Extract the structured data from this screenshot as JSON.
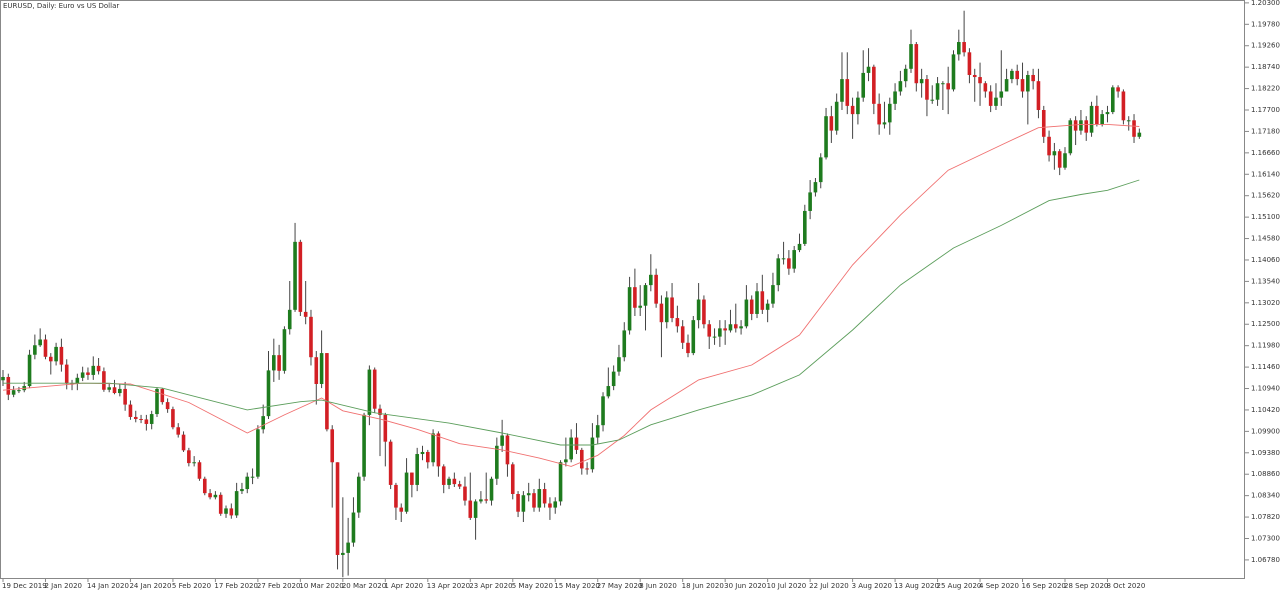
{
  "chart_data": {
    "type": "candlestick",
    "title": "EURUSD, Daily:  Euro vs US Dollar",
    "up_color": "#1e7b1e",
    "down_color": "#d21f24",
    "categories": [
      "19 Dec 2019",
      null,
      null,
      null,
      null,
      null,
      null,
      null,
      "2 Jan 2020",
      null,
      null,
      null,
      null,
      null,
      null,
      null,
      "14 Jan 2020",
      null,
      null,
      null,
      null,
      null,
      null,
      null,
      "24 Jan 2020",
      null,
      null,
      null,
      null,
      null,
      null,
      null,
      "5 Feb 2020",
      null,
      null,
      null,
      null,
      null,
      null,
      null,
      "17 Feb 2020",
      null,
      null,
      null,
      null,
      null,
      null,
      null,
      "27 Feb 2020",
      null,
      null,
      null,
      null,
      null,
      null,
      null,
      "10 Mar 2020",
      null,
      null,
      null,
      null,
      null,
      null,
      null,
      "20 Mar 2020",
      null,
      null,
      null,
      null,
      null,
      null,
      null,
      "1 Apr 2020",
      null,
      null,
      null,
      null,
      null,
      null,
      null,
      "13 Apr 2020",
      null,
      null,
      null,
      null,
      null,
      null,
      null,
      "23 Apr 2020",
      null,
      null,
      null,
      null,
      null,
      null,
      null,
      "5 May 2020",
      null,
      null,
      null,
      null,
      null,
      null,
      null,
      "15 May 2020",
      null,
      null,
      null,
      null,
      null,
      null,
      null,
      "27 May 2020",
      null,
      null,
      null,
      null,
      null,
      null,
      null,
      "8 Jun 2020",
      null,
      null,
      null,
      null,
      null,
      null,
      null,
      "18 Jun 2020",
      null,
      null,
      null,
      null,
      null,
      null,
      null,
      "30 Jun 2020",
      null,
      null,
      null,
      null,
      null,
      null,
      null,
      "10 Jul 2020",
      null,
      null,
      null,
      null,
      null,
      null,
      null,
      "22 Jul 2020",
      null,
      null,
      null,
      null,
      null,
      null,
      null,
      "3 Aug 2020",
      null,
      null,
      null,
      null,
      null,
      null,
      null,
      "13 Aug 2020",
      null,
      null,
      null,
      null,
      null,
      null,
      null,
      "25 Aug 2020",
      null,
      null,
      null,
      null,
      null,
      null,
      null,
      "4 Sep 2020",
      null,
      null,
      null,
      null,
      null,
      null,
      null,
      "16 Sep 2020",
      null,
      null,
      null,
      null,
      null,
      null,
      null,
      "28 Sep 2020",
      null,
      null,
      null,
      null,
      null,
      null,
      null,
      "8 Oct 2020",
      null,
      null,
      null,
      null,
      null,
      null
    ],
    "open": [
      1.1114,
      1.1122,
      1.1079,
      1.109,
      1.109,
      1.11,
      1.1176,
      1.1199,
      1.1213,
      1.1171,
      1.116,
      1.1195,
      1.1152,
      1.1106,
      1.1105,
      1.112,
      1.1133,
      1.1127,
      1.1149,
      1.1136,
      1.1091,
      1.1097,
      1.1083,
      1.1093,
      1.1055,
      1.1025,
      1.102,
      1.1019,
      1.1008,
      1.1032,
      1.1093,
      1.1061,
      1.1044,
      1.1,
      1.0982,
      1.0944,
      1.0913,
      1.0915,
      1.0875,
      1.084,
      1.083,
      1.0836,
      1.079,
      1.0803,
      1.0786,
      1.0845,
      1.085,
      1.088,
      1.088,
      1.0995,
      1.1027,
      1.1138,
      1.1175,
      1.1137,
      1.1238,
      1.1285,
      1.145,
      1.128,
      1.1268,
      1.117,
      1.1105,
      1.118,
      1.0995,
      1.0915,
      1.069,
      1.0695,
      1.072,
      1.0793,
      1.088,
      1.103,
      1.114,
      1.1045,
      1.103,
      1.0965,
      1.086,
      1.0805,
      1.0795,
      1.089,
      1.086,
      1.0935,
      1.094,
      1.0915,
      1.0985,
      1.0905,
      1.086,
      1.0875,
      1.0862,
      1.0856,
      1.0822,
      1.078,
      1.082,
      1.0825,
      1.0822,
      1.0875,
      1.0955,
      1.098,
      1.091,
      1.0838,
      1.0795,
      1.0835,
      1.084,
      1.0805,
      1.085,
      1.0815,
      1.0805,
      1.082,
      1.0915,
      1.0922,
      1.0975,
      1.0945,
      1.09,
      1.0898,
      1.0975,
      1.1005,
      1.1075,
      1.11,
      1.1135,
      1.117,
      1.1235,
      1.134,
      1.129,
      1.1295,
      1.1345,
      1.137,
      1.13,
      1.1255,
      1.1315,
      1.1265,
      1.1245,
      1.1205,
      1.118,
      1.126,
      1.131,
      1.125,
      1.122,
      1.122,
      1.124,
      1.1235,
      1.125,
      1.124,
      1.1245,
      1.131,
      1.1275,
      1.133,
      1.1285,
      1.13,
      1.1345,
      1.141,
      1.141,
      1.1385,
      1.143,
      1.1445,
      1.1525,
      1.157,
      1.1595,
      1.1655,
      1.1755,
      1.172,
      1.179,
      1.1845,
      1.178,
      1.176,
      1.18,
      1.186,
      1.1875,
      1.1785,
      1.1735,
      1.174,
      1.1785,
      1.1815,
      1.184,
      1.187,
      1.193,
      1.1835,
      1.1845,
      1.1795,
      1.1795,
      1.1835,
      1.1835,
      1.182,
      1.1905,
      1.1935,
      1.191,
      1.1855,
      1.185,
      1.1835,
      1.1815,
      1.178,
      1.18,
      1.1815,
      1.1845,
      1.1865,
      1.1845,
      1.1815,
      1.1855,
      1.184,
      1.177,
      1.1705,
      1.166,
      1.167,
      1.163,
      1.1665,
      1.1745,
      1.172,
      1.1745,
      1.1715,
      1.178,
      1.1735,
      1.176,
      1.1765,
      1.1825,
      1.1815,
      1.1745,
      1.1745,
      1.1705
    ],
    "high": [
      1.1139,
      1.113,
      1.11,
      1.1098,
      1.111,
      1.1188,
      1.1225,
      1.124,
      1.1225,
      1.118,
      1.1205,
      1.1215,
      1.1165,
      1.1115,
      1.113,
      1.1147,
      1.1145,
      1.1172,
      1.1168,
      1.1145,
      1.1105,
      1.1115,
      1.1105,
      1.111,
      1.1065,
      1.104,
      1.103,
      1.103,
      1.104,
      1.1097,
      1.1095,
      1.107,
      1.105,
      1.101,
      1.099,
      1.095,
      1.093,
      1.092,
      1.088,
      1.085,
      1.0845,
      1.0842,
      1.081,
      1.0815,
      1.0865,
      1.0865,
      1.089,
      1.09,
      1.1005,
      1.1055,
      1.1185,
      1.1215,
      1.12,
      1.1245,
      1.1355,
      1.1496,
      1.1455,
      1.1355,
      1.1285,
      1.1185,
      1.1235,
      1.118,
      1.1005,
      1.0915,
      1.083,
      1.078,
      1.083,
      1.089,
      1.1035,
      1.115,
      1.1145,
      1.1055,
      1.1035,
      1.097,
      1.0865,
      1.0815,
      1.0925,
      1.089,
      1.095,
      1.0955,
      1.0945,
      1.0995,
      1.099,
      1.091,
      1.088,
      1.089,
      1.087,
      1.088,
      1.089,
      1.0825,
      1.0845,
      1.089,
      1.088,
      1.0975,
      1.1018,
      1.0985,
      1.0915,
      1.0845,
      1.0845,
      1.0865,
      1.085,
      1.0875,
      1.0865,
      1.083,
      1.083,
      1.092,
      1.0975,
      1.0995,
      1.101,
      1.095,
      1.0915,
      1.101,
      1.103,
      1.1085,
      1.1145,
      1.115,
      1.12,
      1.1255,
      1.1365,
      1.1385,
      1.1345,
      1.135,
      1.142,
      1.1385,
      1.132,
      1.133,
      1.135,
      1.1295,
      1.126,
      1.1225,
      1.127,
      1.135,
      1.132,
      1.126,
      1.124,
      1.126,
      1.126,
      1.1285,
      1.13,
      1.126,
      1.1345,
      1.132,
      1.135,
      1.137,
      1.131,
      1.1375,
      1.142,
      1.145,
      1.143,
      1.144,
      1.147,
      1.154,
      1.16,
      1.1605,
      1.1665,
      1.1775,
      1.178,
      1.181,
      1.191,
      1.191,
      1.18,
      1.1815,
      1.1915,
      1.192,
      1.188,
      1.181,
      1.179,
      1.18,
      1.1835,
      1.1865,
      1.188,
      1.1965,
      1.1935,
      1.187,
      1.1855,
      1.183,
      1.185,
      1.184,
      1.1875,
      1.1915,
      1.1965,
      1.2011,
      1.192,
      1.187,
      1.1885,
      1.184,
      1.183,
      1.1835,
      1.1915,
      1.187,
      1.187,
      1.188,
      1.1885,
      1.1865,
      1.187,
      1.187,
      1.178,
      1.172,
      1.169,
      1.1675,
      1.168,
      1.175,
      1.1755,
      1.177,
      1.1755,
      1.179,
      1.1805,
      1.177,
      1.178,
      1.183,
      1.183,
      1.182,
      1.1755,
      1.176,
      1.1725
    ],
    "low": [
      1.11,
      1.1066,
      1.1073,
      1.1083,
      1.1085,
      1.1095,
      1.1165,
      1.1195,
      1.1165,
      1.1128,
      1.115,
      1.1135,
      1.1092,
      1.109,
      1.109,
      1.1112,
      1.1115,
      1.1115,
      1.1128,
      1.1086,
      1.1085,
      1.108,
      1.1075,
      1.104,
      1.1018,
      1.1012,
      1.101,
      1.0992,
      1.0995,
      1.1025,
      1.1055,
      1.1035,
      1.0995,
      1.0975,
      1.094,
      1.0905,
      1.0905,
      1.087,
      1.0835,
      1.0825,
      1.0825,
      1.0785,
      1.078,
      1.0778,
      1.078,
      1.0838,
      1.084,
      1.0862,
      1.0875,
      1.0985,
      1.102,
      1.111,
      1.1115,
      1.113,
      1.1225,
      1.128,
      1.127,
      1.125,
      1.115,
      1.1055,
      1.1095,
      1.099,
      1.0805,
      1.0655,
      1.0636,
      1.064,
      1.071,
      1.078,
      1.087,
      1.1005,
      1.1035,
      1.093,
      1.0905,
      1.085,
      1.0775,
      1.077,
      1.079,
      1.083,
      1.0845,
      1.092,
      1.09,
      1.0905,
      1.088,
      1.084,
      1.085,
      1.0855,
      1.085,
      1.081,
      1.0775,
      1.0727,
      1.0815,
      1.0815,
      1.081,
      1.086,
      1.094,
      1.088,
      1.0825,
      1.0782,
      1.077,
      1.082,
      1.0795,
      1.0795,
      1.0805,
      1.0775,
      1.079,
      1.081,
      1.0905,
      1.0915,
      1.0935,
      1.0885,
      1.0885,
      1.089,
      1.096,
      1.099,
      1.107,
      1.109,
      1.1125,
      1.116,
      1.1225,
      1.127,
      1.127,
      1.1235,
      1.133,
      1.129,
      1.117,
      1.124,
      1.1255,
      1.123,
      1.119,
      1.117,
      1.1175,
      1.124,
      1.124,
      1.119,
      1.12,
      1.1195,
      1.12,
      1.123,
      1.123,
      1.1225,
      1.124,
      1.126,
      1.1265,
      1.1275,
      1.1255,
      1.129,
      1.133,
      1.1395,
      1.137,
      1.1375,
      1.1425,
      1.144,
      1.1505,
      1.156,
      1.158,
      1.165,
      1.169,
      1.171,
      1.177,
      1.176,
      1.17,
      1.1735,
      1.179,
      1.184,
      1.176,
      1.171,
      1.1725,
      1.171,
      1.177,
      1.1805,
      1.1825,
      1.186,
      1.1815,
      1.18,
      1.1755,
      1.1785,
      1.178,
      1.177,
      1.176,
      1.1815,
      1.189,
      1.19,
      1.1835,
      1.179,
      1.178,
      1.18,
      1.1765,
      1.177,
      1.178,
      1.1815,
      1.1835,
      1.183,
      1.18,
      1.1735,
      1.182,
      1.175,
      1.169,
      1.1645,
      1.1625,
      1.1612,
      1.1625,
      1.166,
      1.1685,
      1.171,
      1.1695,
      1.1705,
      1.173,
      1.173,
      1.174,
      1.176,
      1.18,
      1.1735,
      1.172,
      1.169,
      1.17
    ],
    "close": [
      1.1122,
      1.1079,
      1.109,
      1.109,
      1.11,
      1.1176,
      1.1199,
      1.1213,
      1.1171,
      1.116,
      1.1195,
      1.1152,
      1.1106,
      1.1105,
      1.112,
      1.1133,
      1.1127,
      1.1149,
      1.1136,
      1.1091,
      1.1097,
      1.1083,
      1.1093,
      1.1055,
      1.1025,
      1.102,
      1.1019,
      1.1008,
      1.1032,
      1.1093,
      1.1061,
      1.1044,
      1.1,
      1.0982,
      1.0944,
      1.0913,
      1.0915,
      1.0875,
      1.084,
      1.083,
      1.0836,
      1.079,
      1.0803,
      1.0786,
      1.0845,
      1.085,
      1.088,
      1.088,
      1.0995,
      1.1027,
      1.1138,
      1.1175,
      1.1137,
      1.1238,
      1.1285,
      1.145,
      1.128,
      1.1268,
      1.117,
      1.1105,
      1.118,
      1.0995,
      1.0915,
      1.069,
      1.0695,
      1.072,
      1.0793,
      1.088,
      1.103,
      1.114,
      1.1045,
      1.103,
      1.0965,
      1.086,
      1.0805,
      1.0795,
      1.089,
      1.086,
      1.0935,
      1.094,
      1.0915,
      1.0985,
      1.0905,
      1.086,
      1.0875,
      1.0862,
      1.0856,
      1.0822,
      1.078,
      1.082,
      1.0825,
      1.0822,
      1.0875,
      1.0955,
      1.098,
      1.091,
      1.0838,
      1.0795,
      1.0835,
      1.084,
      1.0805,
      1.085,
      1.0815,
      1.0805,
      1.082,
      1.0915,
      1.0922,
      1.0975,
      1.0945,
      1.09,
      1.0898,
      1.0975,
      1.1005,
      1.1075,
      1.11,
      1.1135,
      1.117,
      1.1235,
      1.134,
      1.129,
      1.1295,
      1.1345,
      1.137,
      1.13,
      1.1255,
      1.1315,
      1.1265,
      1.1245,
      1.1205,
      1.118,
      1.126,
      1.131,
      1.125,
      1.122,
      1.122,
      1.124,
      1.1235,
      1.125,
      1.124,
      1.1245,
      1.131,
      1.1275,
      1.133,
      1.1285,
      1.13,
      1.1345,
      1.141,
      1.141,
      1.1385,
      1.143,
      1.1445,
      1.1525,
      1.157,
      1.1595,
      1.1655,
      1.1755,
      1.172,
      1.179,
      1.1845,
      1.178,
      1.176,
      1.18,
      1.186,
      1.1875,
      1.1785,
      1.1735,
      1.174,
      1.1785,
      1.1815,
      1.184,
      1.187,
      1.193,
      1.1835,
      1.1845,
      1.1795,
      1.1795,
      1.1835,
      1.1835,
      1.182,
      1.1905,
      1.1935,
      1.191,
      1.1855,
      1.185,
      1.1835,
      1.1815,
      1.178,
      1.18,
      1.1815,
      1.1845,
      1.1865,
      1.1845,
      1.1815,
      1.1855,
      1.184,
      1.177,
      1.1705,
      1.166,
      1.167,
      1.163,
      1.1665,
      1.1745,
      1.172,
      1.1745,
      1.1715,
      1.178,
      1.1735,
      1.176,
      1.1765,
      1.1825,
      1.1815,
      1.1745,
      1.1745,
      1.1705,
      1.1715
    ],
    "overlays": [
      {
        "color": "#f07070",
        "x": [
          0,
          15,
          24,
          35,
          46,
          53,
          60,
          64,
          71,
          78,
          86,
          94,
          101,
          107,
          112,
          117,
          122,
          131,
          141,
          150,
          160,
          169,
          178,
          188,
          195,
          203,
          208,
          214
        ],
        "values": [
          1.109,
          1.1107,
          1.1105,
          1.106,
          1.0986,
          1.103,
          1.1071,
          1.104,
          1.102,
          1.0995,
          1.096,
          1.0945,
          1.0925,
          1.0905,
          1.0932,
          1.098,
          1.1042,
          1.1115,
          1.1151,
          1.1224,
          1.1394,
          1.1515,
          1.1624,
          1.1685,
          1.1727,
          1.1735,
          1.1735,
          1.173
        ]
      },
      {
        "color": "#5c9e5c",
        "x": [
          0,
          20,
          30,
          46,
          56,
          60,
          70,
          84,
          94,
          105,
          111,
          116,
          122,
          131,
          141,
          150,
          160,
          169,
          179,
          188,
          197,
          203,
          208,
          214
        ],
        "values": [
          1.1107,
          1.1107,
          1.1095,
          1.1042,
          1.1062,
          1.1066,
          1.1035,
          1.101,
          1.0986,
          1.0957,
          1.0957,
          1.0969,
          1.1006,
          1.1042,
          1.1078,
          1.1127,
          1.1236,
          1.1345,
          1.1435,
          1.149,
          1.155,
          1.1565,
          1.1575,
          1.16
        ]
      }
    ],
    "ylim": [
      1.06341,
      1.2037
    ],
    "yticks": [
      {
        "value": 1.203,
        "label": "1.20300"
      },
      {
        "value": 1.1978,
        "label": "1.19780"
      },
      {
        "value": 1.1926,
        "label": "1.19260"
      },
      {
        "value": 1.1874,
        "label": "1.18740"
      },
      {
        "value": 1.1822,
        "label": "1.18220"
      },
      {
        "value": 1.177,
        "label": "1.17700"
      },
      {
        "value": 1.1718,
        "label": "1.17180"
      },
      {
        "value": 1.1666,
        "label": "1.16660"
      },
      {
        "value": 1.1614,
        "label": "1.16140"
      },
      {
        "value": 1.1562,
        "label": "1.15620"
      },
      {
        "value": 1.151,
        "label": "1.15100"
      },
      {
        "value": 1.1458,
        "label": "1.14580"
      },
      {
        "value": 1.1406,
        "label": "1.14060"
      },
      {
        "value": 1.1354,
        "label": "1.13540"
      },
      {
        "value": 1.1302,
        "label": "1.13020"
      },
      {
        "value": 1.125,
        "label": "1.12500"
      },
      {
        "value": 1.1198,
        "label": "1.11980"
      },
      {
        "value": 1.1146,
        "label": "1.11460"
      },
      {
        "value": 1.1094,
        "label": "1.10940"
      },
      {
        "value": 1.1042,
        "label": "1.10420"
      },
      {
        "value": 1.099,
        "label": "1.09900"
      },
      {
        "value": 1.0938,
        "label": "1.09380"
      },
      {
        "value": 1.0886,
        "label": "1.08860"
      },
      {
        "value": 1.0834,
        "label": "1.08340"
      },
      {
        "value": 1.0782,
        "label": "1.07820"
      },
      {
        "value": 1.073,
        "label": "1.07300"
      },
      {
        "value": 1.0678,
        "label": "1.06780"
      }
    ],
    "grid": false
  }
}
